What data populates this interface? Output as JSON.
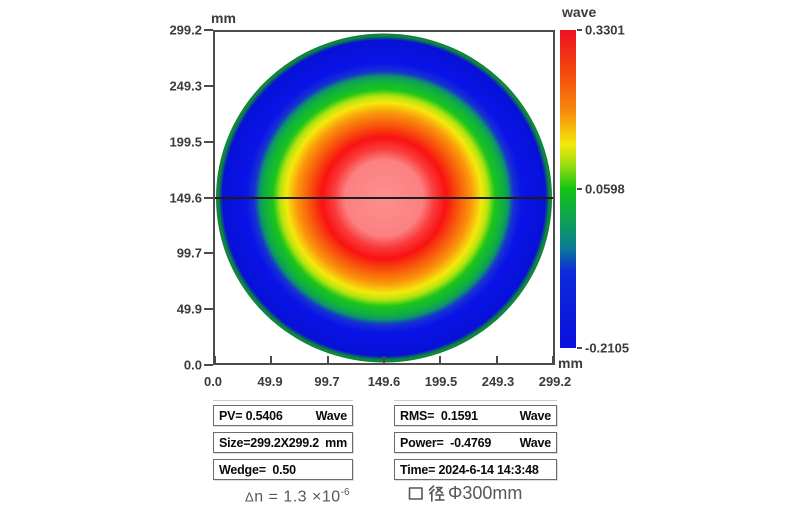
{
  "plot": {
    "y_axis_unit": "mm",
    "x_axis_unit": "mm",
    "y_ticks": [
      {
        "label": "299.2"
      },
      {
        "label": "249.3"
      },
      {
        "label": "199.5"
      },
      {
        "label": "149.6"
      },
      {
        "label": "99.7"
      },
      {
        "label": "49.9"
      },
      {
        "label": "0.0"
      }
    ],
    "x_ticks": [
      {
        "label": "0.0"
      },
      {
        "label": "49.9"
      },
      {
        "label": "99.7"
      },
      {
        "label": "149.6"
      },
      {
        "label": "199.5"
      },
      {
        "label": "249.3"
      },
      {
        "label": "299.2"
      }
    ],
    "disk_gradient": [
      [
        0,
        "#fd8f8f"
      ],
      [
        23,
        "#fc8181"
      ],
      [
        30,
        "#fa3b3b"
      ],
      [
        37,
        "#f91212"
      ],
      [
        44,
        "#f8520c"
      ],
      [
        52,
        "#fa980c"
      ],
      [
        58,
        "#f6e80b"
      ],
      [
        62,
        "#b2e410"
      ],
      [
        66,
        "#1bc51b"
      ],
      [
        71,
        "#10b13e"
      ],
      [
        74,
        "#0d9469"
      ],
      [
        77,
        "#1634cf"
      ],
      [
        82,
        "#0a13e8"
      ],
      [
        96,
        "#0711d6"
      ],
      [
        98.5,
        "#0e8a3a"
      ],
      [
        100,
        "#12803a"
      ]
    ]
  },
  "colorbar": {
    "unit_top": "wave",
    "ticks": [
      {
        "label": "0.3301"
      },
      {
        "label": "0.0598"
      },
      {
        "label": "-0.2105"
      }
    ],
    "gradient": [
      [
        0,
        "#ee1023"
      ],
      [
        12,
        "#f4420e"
      ],
      [
        25,
        "#f8860b"
      ],
      [
        36,
        "#f2ea0a"
      ],
      [
        42,
        "#a3de11"
      ],
      [
        50,
        "#14c414"
      ],
      [
        60,
        "#0da057"
      ],
      [
        68,
        "#0c7f92"
      ],
      [
        76,
        "#0f2bd8"
      ],
      [
        100,
        "#0a10df"
      ]
    ]
  },
  "stats": {
    "left": [
      {
        "text": "PV= 0.5406",
        "unit": "Wave"
      },
      {
        "text": "Size=299.2X299.2",
        "unit": "mm"
      },
      {
        "text": "Wedge=  0.50",
        "unit": ""
      }
    ],
    "right": [
      {
        "text": "RMS=  0.1591",
        "unit": "Wave"
      },
      {
        "text": "Power=  -0.4769",
        "unit": "Wave"
      },
      {
        "text": "Time= 2024-6-14 14:3:48",
        "unit": ""
      }
    ]
  },
  "captions": {
    "delta_symbol": "Δ",
    "delta_rest": "n = 1.3 ×10",
    "delta_exponent": "-6",
    "delta_full": "Δn = 1.3 ×10⁻⁶",
    "aperture_full": "口径Φ300mm",
    "aperture_text": "Φ300mm"
  },
  "chart_data": {
    "type": "heatmap",
    "title": "Interferometric wavefront map (circular aperture)",
    "xlabel": "mm",
    "ylabel": "mm",
    "x_range_mm": [
      0.0,
      299.2
    ],
    "y_range_mm": [
      0.0,
      299.2
    ],
    "x_tick_values_mm": [
      0.0,
      49.9,
      99.7,
      149.6,
      199.5,
      249.3,
      299.2
    ],
    "y_tick_values_mm": [
      0.0,
      49.9,
      99.7,
      149.6,
      199.5,
      249.3,
      299.2
    ],
    "value_unit": "wave",
    "value_range": [
      -0.2105,
      0.3301
    ],
    "colorbar_tick_values": [
      0.3301,
      0.0598,
      -0.2105
    ],
    "colorbar_position": "right",
    "aperture": {
      "shape": "circle",
      "center_mm": [
        149.6,
        149.6
      ],
      "diameter_mm": 299.2
    },
    "crosshair_line_y_mm": 149.6,
    "pattern": "concentric rings, peak at center (pink/red) falling to minimum at edge (blue); defocus/power dominated",
    "radial_profile": [
      {
        "r_norm": 0.0,
        "wave": 0.33
      },
      {
        "r_norm": 0.25,
        "wave": 0.31
      },
      {
        "r_norm": 0.38,
        "wave": 0.26
      },
      {
        "r_norm": 0.53,
        "wave": 0.18
      },
      {
        "r_norm": 0.6,
        "wave": 0.12
      },
      {
        "r_norm": 0.67,
        "wave": 0.06
      },
      {
        "r_norm": 0.75,
        "wave": -0.01
      },
      {
        "r_norm": 0.85,
        "wave": -0.1
      },
      {
        "r_norm": 1.0,
        "wave": -0.21
      }
    ],
    "measurements": {
      "PV_wave": 0.5406,
      "RMS_wave": 0.1591,
      "power_wave": -0.4769,
      "size_mm": "299.2X299.2",
      "wedge": 0.5,
      "time": "2024-6-14 14:3:48",
      "delta_n": "1.3 ×10⁻⁶",
      "aperture_label": "口径Φ300mm"
    }
  }
}
